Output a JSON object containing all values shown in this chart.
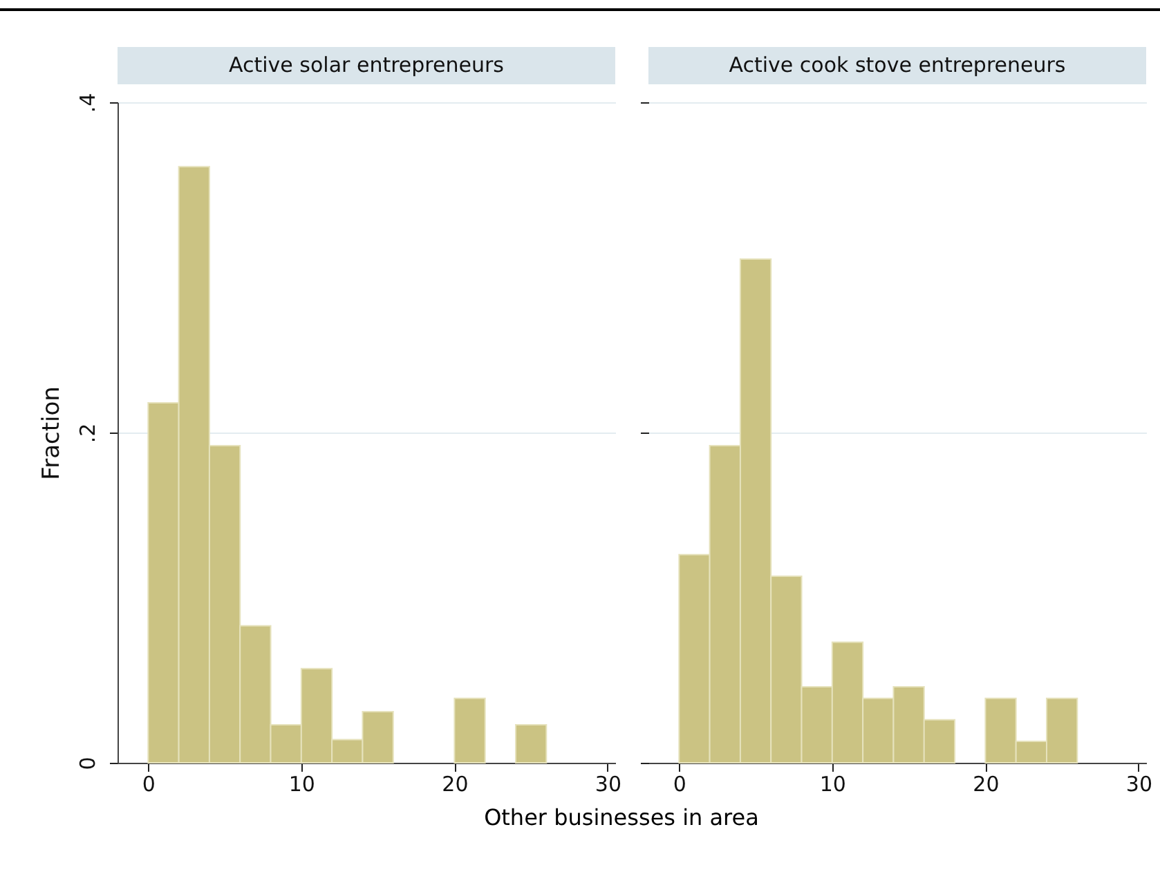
{
  "chart_data": [
    {
      "type": "histogram",
      "title": "Active solar entrepreneurs",
      "xlabel": "Other businesses in area",
      "ylabel": "Fraction",
      "color": "#cbc383",
      "bins": [
        0,
        2,
        4,
        6,
        8,
        10,
        12,
        14,
        16,
        18,
        20,
        22,
        24,
        26
      ],
      "values": [
        0.218,
        0.361,
        0.192,
        0.083,
        0.023,
        0.057,
        0.014,
        0.031,
        0,
        0,
        0.039,
        0,
        0.023
      ],
      "xlim": [
        -2,
        30.5
      ],
      "xticks": [
        0,
        10,
        20,
        30
      ],
      "ylim": [
        0,
        0.4
      ],
      "yticks": [
        {
          "value": 0,
          "label": "0"
        },
        {
          "value": 0.2,
          "label": ".2"
        },
        {
          "value": 0.4,
          "label": ".4"
        }
      ],
      "grid": "y"
    },
    {
      "type": "histogram",
      "title": "Active cook stove entrepreneurs",
      "color": "#cbc383",
      "bins": [
        0,
        2,
        4,
        6,
        8,
        10,
        12,
        14,
        16,
        18,
        20,
        22,
        24,
        26
      ],
      "values": [
        0.126,
        0.192,
        0.305,
        0.113,
        0.046,
        0.073,
        0.039,
        0.046,
        0.026,
        0,
        0.039,
        0.013,
        0.039
      ],
      "xlim": [
        -2,
        30.5
      ],
      "xticks": [
        0,
        10,
        20,
        30
      ],
      "ylim": [
        0,
        0.4
      ],
      "yticks": [
        0,
        0.2,
        0.4
      ],
      "grid": "y",
      "tick_labels": "x"
    }
  ]
}
